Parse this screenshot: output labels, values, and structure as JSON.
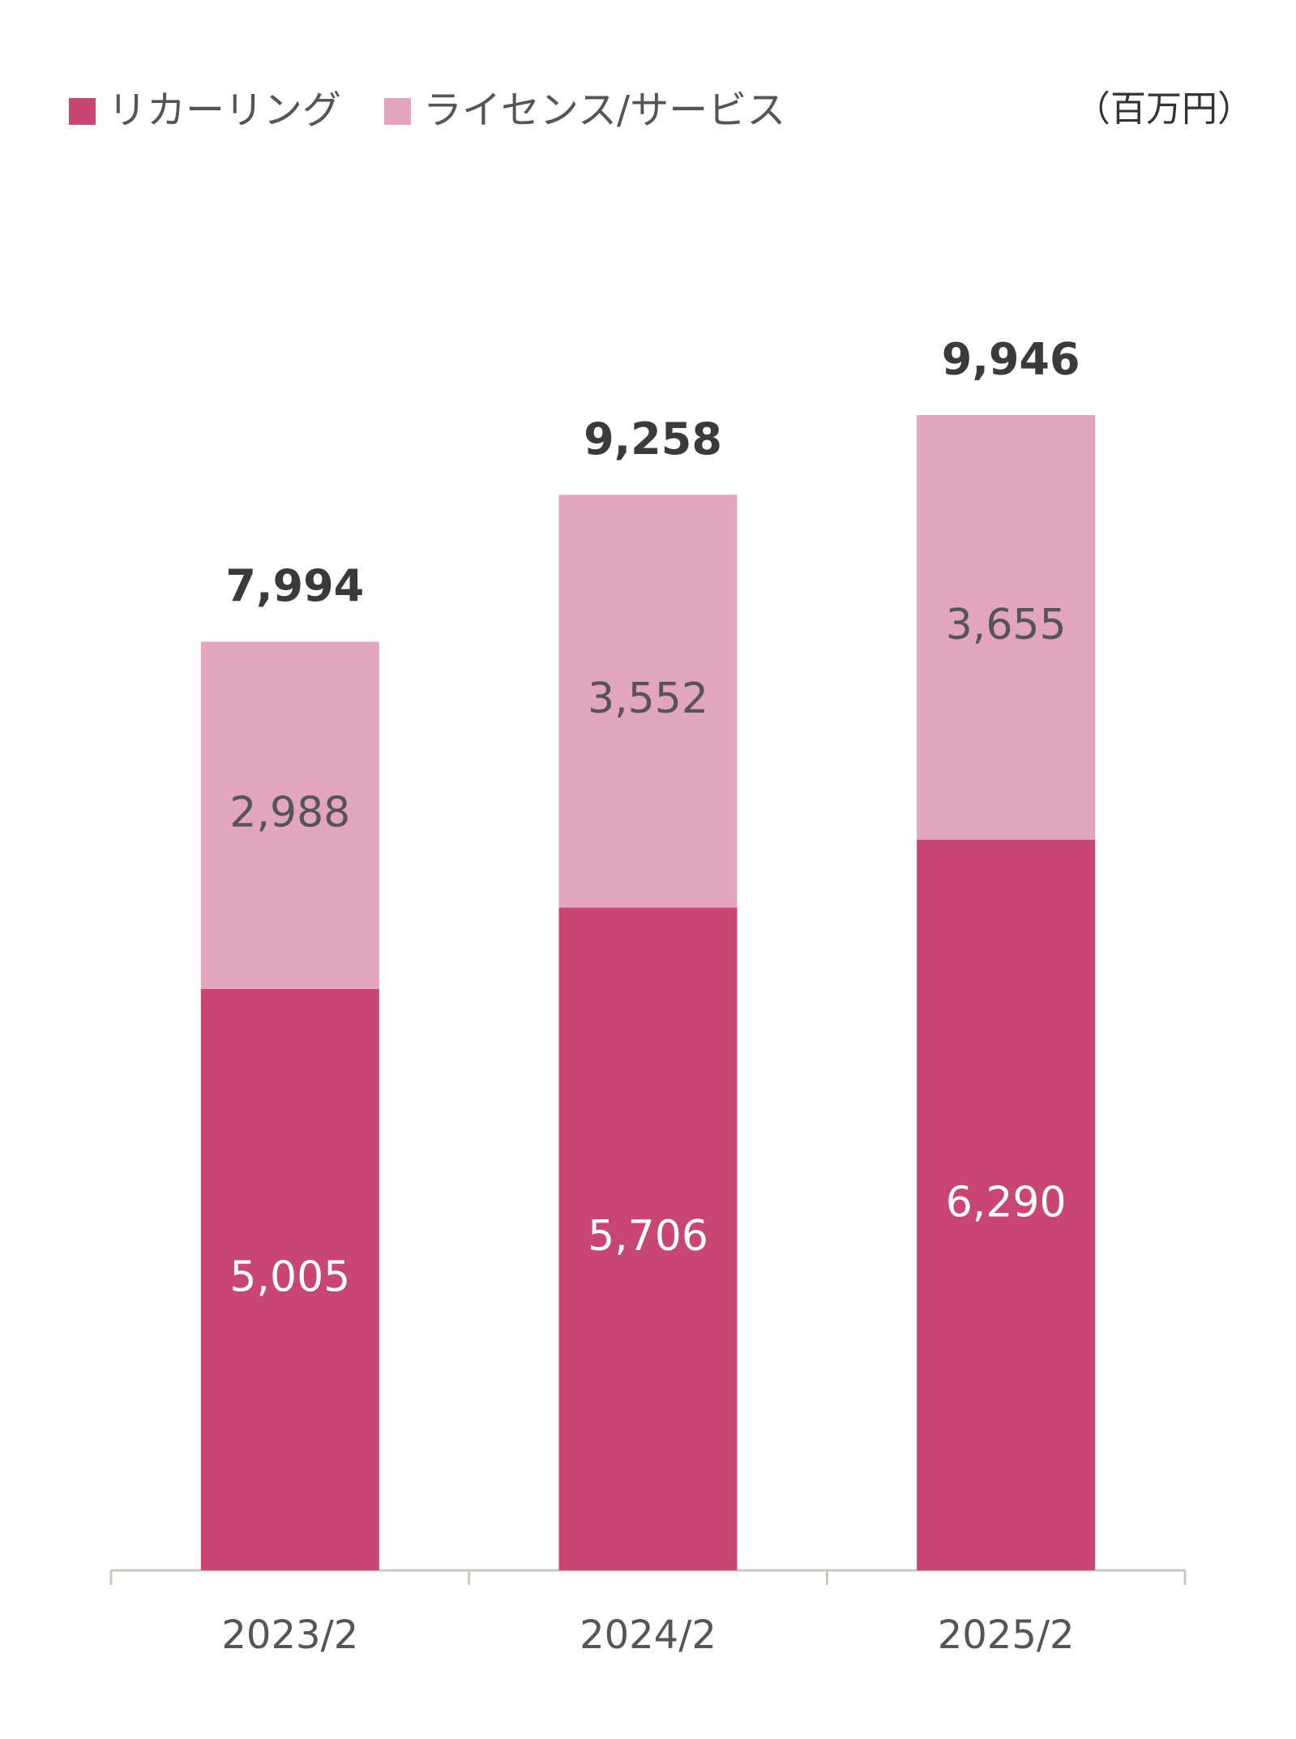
{
  "chart_data": {
    "type": "stacked_bar",
    "unit": "（百万円）",
    "categories": [
      "2023/2",
      "2024/2",
      "2025/2"
    ],
    "series": [
      {
        "name": "リカーリング",
        "color": "#c84674",
        "label_color": "#ffffff",
        "values": [
          5005,
          5706,
          6290
        ],
        "value_labels": [
          "5,005",
          "5,706",
          "6,290"
        ]
      },
      {
        "name": "ライセンス/サービス",
        "color": "#e3a4bd",
        "label_color": "#555555",
        "values": [
          2988,
          3552,
          3655
        ],
        "value_labels": [
          "2,988",
          "3,552",
          "3,655"
        ]
      }
    ],
    "totals": [
      7994,
      9258,
      9946
    ],
    "total_labels": [
      "7,994",
      "9,258",
      "9,946"
    ],
    "ylim": [
      0,
      10000
    ]
  }
}
